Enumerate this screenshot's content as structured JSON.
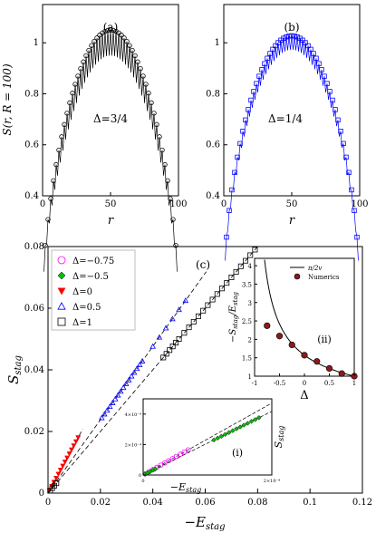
{
  "chart_data": [
    {
      "id": "a",
      "type": "line",
      "panel_label": "(a)",
      "annotation": "Δ=3/4",
      "ylabel": "S(r, R = 100)",
      "xlabel": "r",
      "xlim": [
        0,
        100
      ],
      "ylim": [
        0.4,
        1.15
      ],
      "xticks": [
        0,
        50,
        100
      ],
      "yticks": [
        0.4,
        0.6,
        0.8,
        1
      ],
      "color": "#000000",
      "marker": "circle",
      "delta": 0.75
    },
    {
      "id": "b",
      "type": "line",
      "panel_label": "(b)",
      "annotation": "Δ=1/4",
      "xlabel": "r",
      "xlim": [
        0,
        100
      ],
      "ylim": [
        0.4,
        1.15
      ],
      "xticks": [
        0,
        50,
        100
      ],
      "yticks": [
        0.4,
        0.6,
        0.8,
        1
      ],
      "color": "#0000ff",
      "marker": "square",
      "delta": 0.25
    },
    {
      "id": "c",
      "type": "scatter",
      "panel_label": "(c)",
      "xlabel": "−E_stag",
      "ylabel": "S_stag",
      "xlim": [
        0,
        0.12
      ],
      "ylim": [
        0,
        0.08
      ],
      "xticks": [
        0,
        0.02,
        0.04,
        0.06,
        0.08,
        0.1,
        0.12
      ],
      "xtick_labels": [
        "0",
        "0.02",
        "0.04",
        "0.06",
        "0.08",
        "0.1",
        "0.12"
      ],
      "yticks": [
        0,
        0.02,
        0.04,
        0.06,
        0.08
      ],
      "ytick_labels": [
        "0",
        "0.02",
        "0.04",
        "0.06",
        "0.08"
      ],
      "legend_position": "top-left",
      "series": [
        {
          "name": "Δ=−0.75",
          "color": "#ff00ff",
          "marker": "circle",
          "slope": 2.36,
          "xmax": 7e-05
        },
        {
          "name": "Δ=−0.5",
          "color": "#00c000",
          "marker": "diamond",
          "slope": 2.09,
          "xmax": 0.00018
        },
        {
          "name": "Δ=0",
          "color": "#ff0000",
          "marker": "triangle-down",
          "slope": 1.57,
          "xmax": 0.0115
        },
        {
          "name": "Δ=0.5",
          "color": "#0000ff",
          "marker": "triangle-up",
          "slope": 1.19,
          "xmax": 0.0525
        },
        {
          "name": "Δ=1",
          "color": "#000000",
          "marker": "square",
          "slope": 1.0,
          "xmax": 0.079
        }
      ],
      "inset_i": {
        "label": "(i)",
        "xlabel": "−E_stag",
        "ylabel": "S_stag",
        "xlim": [
          0,
          0.0002
        ],
        "ylim": [
          0,
          0.0005
        ],
        "xticks": [
          0,
          0.0002
        ],
        "xtick_labels": [
          "0",
          "2×10⁻⁴"
        ],
        "yticks": [
          0,
          0.0002,
          0.0004
        ],
        "ytick_labels": [
          "0",
          "2×10⁻⁴",
          "4×10⁻⁴"
        ]
      },
      "inset_ii": {
        "label": "(ii)",
        "xlabel": "Δ",
        "ylabel": "−S_stag / E_stag",
        "xlim": [
          -1,
          1
        ],
        "ylim": [
          1,
          4.2
        ],
        "xticks": [
          -1,
          -0.5,
          0,
          0.5,
          1
        ],
        "xtick_labels": [
          "-1",
          "-0.5",
          "0",
          "0.5",
          "1"
        ],
        "yticks": [
          1,
          1.5,
          2,
          2.5,
          3,
          3.5,
          4
        ],
        "ytick_labels": [
          "1",
          "1.5",
          "2",
          "2.5",
          "3",
          "3.5",
          "4"
        ],
        "legend": [
          "π/2v",
          "Numerics"
        ],
        "numerics": [
          {
            "x": -0.75,
            "y": 2.37
          },
          {
            "x": -0.5,
            "y": 2.09
          },
          {
            "x": -0.25,
            "y": 1.85
          },
          {
            "x": 0,
            "y": 1.57
          },
          {
            "x": 0.25,
            "y": 1.4
          },
          {
            "x": 0.5,
            "y": 1.21
          },
          {
            "x": 0.75,
            "y": 1.07
          },
          {
            "x": 1.0,
            "y": 1.0
          }
        ]
      }
    }
  ]
}
